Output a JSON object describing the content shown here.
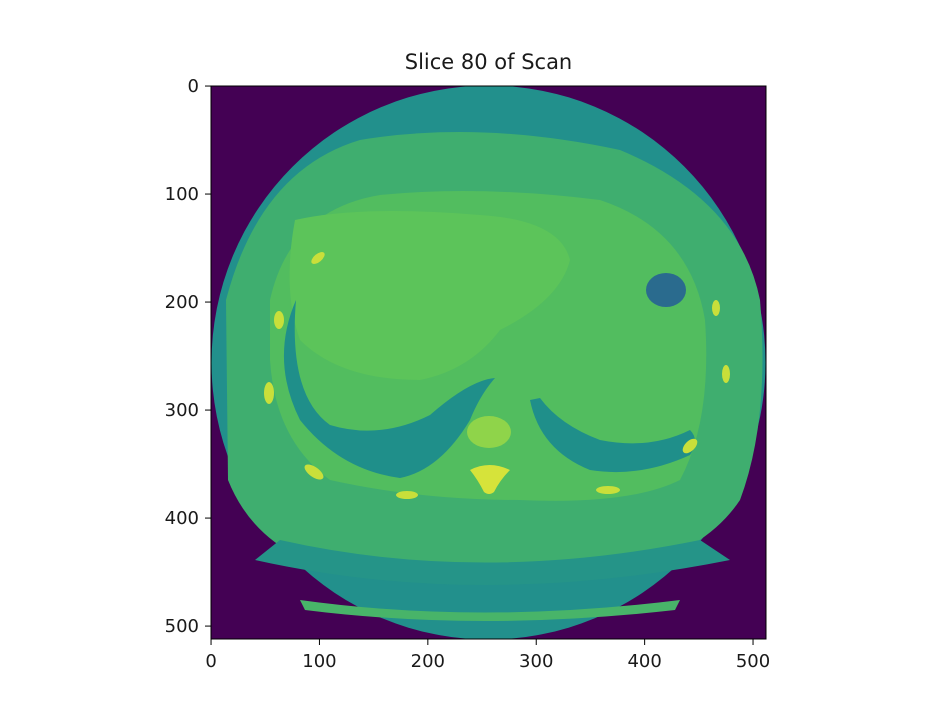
{
  "title": "Slice 80 of Scan",
  "image": {
    "colormap": "viridis",
    "background_color": "#440154",
    "x_range": [
      0,
      511
    ],
    "y_range": [
      0,
      511
    ],
    "y_inverted": true
  },
  "axes": {
    "x_ticks": [
      0,
      100,
      200,
      300,
      400,
      500
    ],
    "y_ticks": [
      0,
      100,
      200,
      300,
      400,
      500
    ]
  }
}
